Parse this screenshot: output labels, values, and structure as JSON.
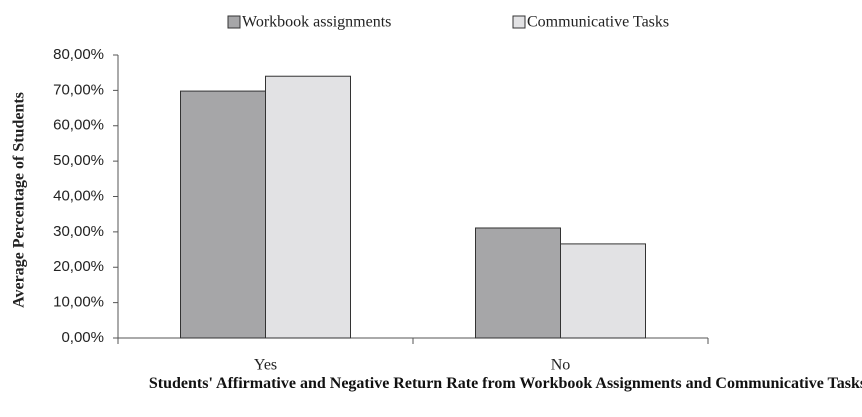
{
  "chart_data": {
    "type": "bar",
    "title": "Students' Affirmative and Negative Return Rate from Workbook Assignments and Communicative Tasks",
    "y_axis_label": "Average Percentage of Students",
    "categories": [
      "Yes",
      "No"
    ],
    "series": [
      {
        "name": "Workbook assignments",
        "color": "#a6a6a8",
        "values": [
          69.8,
          31.1
        ]
      },
      {
        "name": "Communicative Tasks",
        "color": "#e2e2e4",
        "values": [
          74.0,
          26.6
        ]
      }
    ],
    "ylim": [
      0,
      80
    ],
    "yticks": [
      {
        "value": 0,
        "label": "0,00%"
      },
      {
        "value": 10,
        "label": "10,00%"
      },
      {
        "value": 20,
        "label": "20,00%"
      },
      {
        "value": 30,
        "label": "30,00%"
      },
      {
        "value": 40,
        "label": "40,00%"
      },
      {
        "value": 50,
        "label": "50,00%"
      },
      {
        "value": 60,
        "label": "60,00%"
      },
      {
        "value": 70,
        "label": "70,00%"
      },
      {
        "value": 80,
        "label": "80,00%"
      }
    ],
    "legend": "top",
    "grid": false
  }
}
